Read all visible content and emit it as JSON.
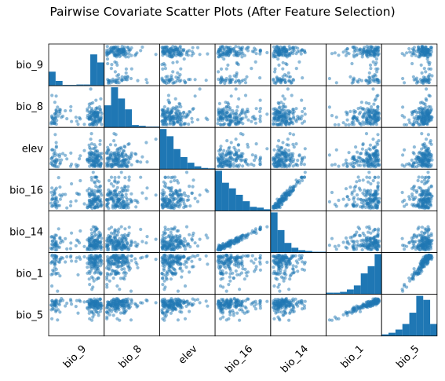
{
  "chart_data": {
    "type": "scatter",
    "title": "Pairwise Covariate Scatter Plots (After Feature Selection)",
    "variables": [
      "bio_9",
      "bio_8",
      "elev",
      "bio_16",
      "bio_14",
      "bio_1",
      "bio_5"
    ],
    "diagonal": "histogram",
    "offdiagonal": "scatter",
    "grid": false,
    "legend": "none",
    "colors": {
      "marker": "#1f77b4",
      "hist": "#1f77b4",
      "frame": "#000000"
    },
    "marker_alpha": 0.5,
    "histograms": {
      "bio_9": [
        0.35,
        0.12,
        0.02,
        0.02,
        0.03,
        0.03,
        0.78,
        0.58
      ],
      "bio_8": [
        0.55,
        1.0,
        0.72,
        0.45,
        0.06,
        0.04,
        0.02,
        0.02
      ],
      "elev": [
        1.0,
        0.82,
        0.5,
        0.3,
        0.16,
        0.07,
        0.03,
        0.02
      ],
      "bio_16": [
        1.0,
        0.7,
        0.56,
        0.4,
        0.24,
        0.1,
        0.08,
        0.04
      ],
      "bio_14": [
        1.0,
        0.56,
        0.24,
        0.12,
        0.06,
        0.04,
        0.02,
        0.02
      ],
      "bio_1": [
        0.04,
        0.04,
        0.06,
        0.12,
        0.22,
        0.52,
        0.7,
        1.0
      ],
      "bio_5": [
        0.04,
        0.08,
        0.16,
        0.3,
        0.58,
        1.0,
        0.9,
        0.3
      ]
    }
  }
}
